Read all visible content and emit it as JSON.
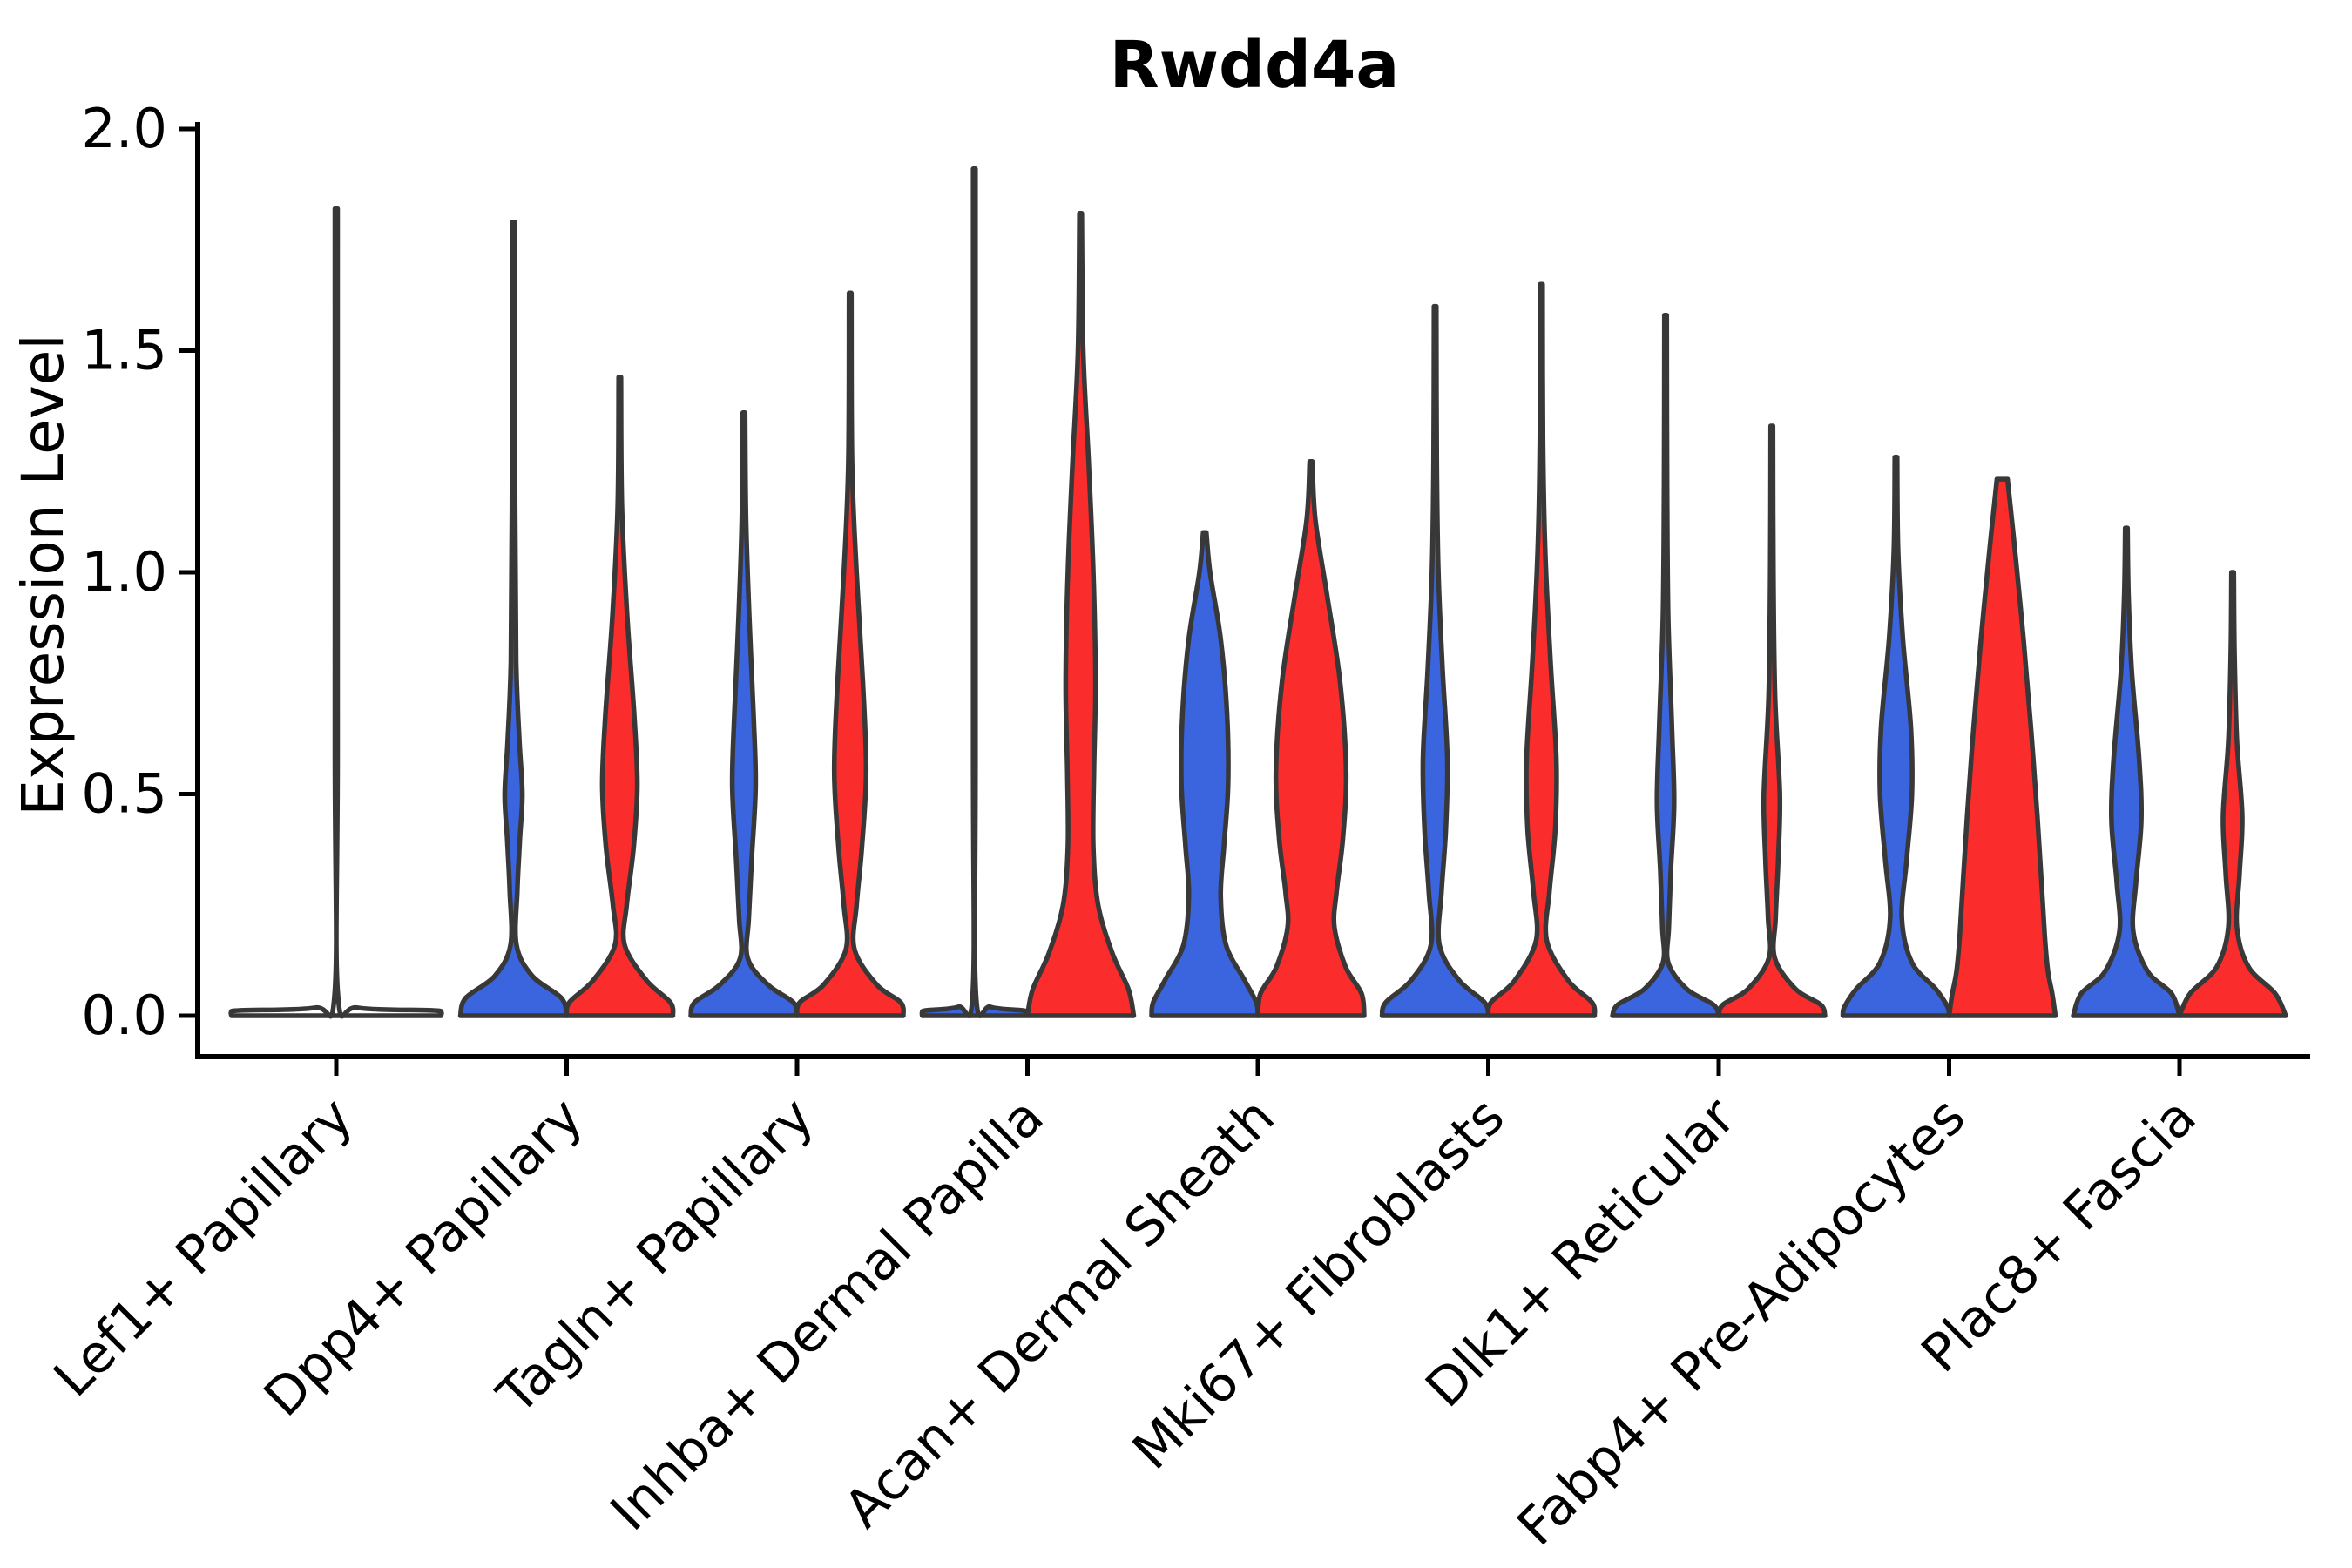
{
  "title": "Rwdd4a",
  "axes": {
    "ylabel": "Expression Level",
    "ytick_labels": [
      "0.0",
      "0.5",
      "1.0",
      "1.5",
      "2.0"
    ]
  },
  "colors": {
    "blue": "#3B64DF",
    "red": "#FB2C2C",
    "outline": "#383838",
    "axis": "#000000"
  },
  "chart_data": {
    "type": "violin",
    "title": "Rwdd4a",
    "xlabel": "",
    "ylabel": "Expression Level",
    "ylim": [
      0,
      2.0
    ],
    "yticks": [
      0,
      0.5,
      1.0,
      1.5,
      2.0
    ],
    "grid": false,
    "legend": "none",
    "categories": [
      "Lef1+ Papillary",
      "Dpp4+ Papillary",
      "Tagln+ Papillary",
      "Inhba+ Dermal Papilla",
      "Acan+ Dermal Sheath",
      "Mki67+ Fibroblasts",
      "Dlk1+ Reticular",
      "Fabp4+ Pre-Adipocytes",
      "Plac8+ Fascia"
    ],
    "series": [
      {
        "name": "group-blue",
        "color": "#3B64DF"
      },
      {
        "name": "group-red",
        "color": "#FB2C2C"
      }
    ],
    "max_expression_by_category": {
      "blue": [
        1.82,
        1.79,
        1.36,
        1.91,
        1.09,
        1.6,
        1.58,
        1.26,
        1.1
      ],
      "red": [
        null,
        1.44,
        1.63,
        1.81,
        1.25,
        1.65,
        1.33,
        1.21,
        1.0
      ]
    },
    "violins": [
      {
        "category": 0,
        "series": "single",
        "color": "none",
        "max": 1.82,
        "flattened": true,
        "profile": [
          [
            1.82,
            0.012
          ],
          [
            0.6,
            0.012
          ],
          [
            0.05,
            0.015
          ],
          [
            0.018,
            0.2
          ],
          [
            0.012,
            0.9
          ],
          [
            0.008,
            0.985
          ],
          [
            0,
            0.985
          ]
        ]
      },
      {
        "category": 1,
        "series": "blue",
        "max": 1.79,
        "profile": [
          [
            1.79,
            0.022
          ],
          [
            1.15,
            0.03
          ],
          [
            0.8,
            0.05
          ],
          [
            0.62,
            0.11
          ],
          [
            0.5,
            0.165
          ],
          [
            0.4,
            0.12
          ],
          [
            0.28,
            0.07
          ],
          [
            0.16,
            0.055
          ],
          [
            0.09,
            0.35
          ],
          [
            0.04,
            0.9
          ],
          [
            0,
            1
          ]
        ]
      },
      {
        "category": 1,
        "series": "red",
        "max": 1.44,
        "profile": [
          [
            1.44,
            0.022
          ],
          [
            1.15,
            0.04
          ],
          [
            0.9,
            0.14
          ],
          [
            0.68,
            0.27
          ],
          [
            0.52,
            0.33
          ],
          [
            0.38,
            0.26
          ],
          [
            0.25,
            0.13
          ],
          [
            0.16,
            0.09
          ],
          [
            0.08,
            0.5
          ],
          [
            0.03,
            0.95
          ],
          [
            0,
            1
          ]
        ]
      },
      {
        "category": 2,
        "series": "blue",
        "max": 1.36,
        "profile": [
          [
            1.36,
            0.022
          ],
          [
            1.12,
            0.04
          ],
          [
            0.9,
            0.1
          ],
          [
            0.68,
            0.18
          ],
          [
            0.52,
            0.22
          ],
          [
            0.36,
            0.15
          ],
          [
            0.22,
            0.09
          ],
          [
            0.13,
            0.07
          ],
          [
            0.07,
            0.45
          ],
          [
            0.03,
            0.93
          ],
          [
            0,
            1
          ]
        ]
      },
      {
        "category": 2,
        "series": "red",
        "max": 1.63,
        "profile": [
          [
            1.63,
            0.022
          ],
          [
            1.25,
            0.035
          ],
          [
            1.0,
            0.12
          ],
          [
            0.75,
            0.24
          ],
          [
            0.55,
            0.3
          ],
          [
            0.38,
            0.22
          ],
          [
            0.25,
            0.12
          ],
          [
            0.15,
            0.08
          ],
          [
            0.07,
            0.5
          ],
          [
            0.03,
            0.95
          ],
          [
            0,
            1
          ]
        ]
      },
      {
        "category": 3,
        "series": "blue",
        "max": 1.91,
        "flattened": true,
        "profile": [
          [
            1.91,
            0.022
          ],
          [
            0.6,
            0.022
          ],
          [
            0.05,
            0.03
          ],
          [
            0.02,
            0.3
          ],
          [
            0.012,
            0.9
          ],
          [
            0.008,
            0.98
          ],
          [
            0,
            0.98
          ]
        ]
      },
      {
        "category": 3,
        "series": "red",
        "max": 1.81,
        "profile": [
          [
            1.81,
            0.022
          ],
          [
            1.5,
            0.05
          ],
          [
            1.25,
            0.15
          ],
          [
            1.0,
            0.24
          ],
          [
            0.75,
            0.28
          ],
          [
            0.55,
            0.25
          ],
          [
            0.38,
            0.24
          ],
          [
            0.25,
            0.33
          ],
          [
            0.14,
            0.6
          ],
          [
            0.06,
            0.9
          ],
          [
            0,
            1
          ]
        ]
      },
      {
        "category": 4,
        "series": "blue",
        "max": 1.09,
        "profile": [
          [
            1.09,
            0.03
          ],
          [
            1.0,
            0.1
          ],
          [
            0.85,
            0.3
          ],
          [
            0.68,
            0.42
          ],
          [
            0.52,
            0.44
          ],
          [
            0.38,
            0.36
          ],
          [
            0.27,
            0.3
          ],
          [
            0.16,
            0.4
          ],
          [
            0.08,
            0.75
          ],
          [
            0.03,
            0.97
          ],
          [
            0,
            1
          ]
        ]
      },
      {
        "category": 4,
        "series": "red",
        "max": 1.25,
        "profile": [
          [
            1.25,
            0.025
          ],
          [
            1.12,
            0.08
          ],
          [
            0.95,
            0.3
          ],
          [
            0.75,
            0.55
          ],
          [
            0.55,
            0.66
          ],
          [
            0.4,
            0.6
          ],
          [
            0.28,
            0.48
          ],
          [
            0.2,
            0.44
          ],
          [
            0.11,
            0.65
          ],
          [
            0.05,
            0.95
          ],
          [
            0,
            1
          ]
        ]
      },
      {
        "category": 5,
        "series": "blue",
        "max": 1.6,
        "profile": [
          [
            1.6,
            0.022
          ],
          [
            1.25,
            0.03
          ],
          [
            1.0,
            0.06
          ],
          [
            0.78,
            0.14
          ],
          [
            0.58,
            0.23
          ],
          [
            0.42,
            0.2
          ],
          [
            0.28,
            0.12
          ],
          [
            0.16,
            0.08
          ],
          [
            0.08,
            0.45
          ],
          [
            0.03,
            0.93
          ],
          [
            0,
            1
          ]
        ]
      },
      {
        "category": 5,
        "series": "red",
        "max": 1.65,
        "profile": [
          [
            1.65,
            0.022
          ],
          [
            1.3,
            0.03
          ],
          [
            1.05,
            0.07
          ],
          [
            0.8,
            0.17
          ],
          [
            0.58,
            0.28
          ],
          [
            0.42,
            0.26
          ],
          [
            0.28,
            0.15
          ],
          [
            0.17,
            0.1
          ],
          [
            0.08,
            0.5
          ],
          [
            0.03,
            0.95
          ],
          [
            0,
            1
          ]
        ]
      },
      {
        "category": 6,
        "series": "blue",
        "max": 1.58,
        "profile": [
          [
            1.58,
            0.022
          ],
          [
            1.2,
            0.028
          ],
          [
            0.9,
            0.05
          ],
          [
            0.65,
            0.12
          ],
          [
            0.48,
            0.16
          ],
          [
            0.33,
            0.1
          ],
          [
            0.2,
            0.06
          ],
          [
            0.12,
            0.05
          ],
          [
            0.06,
            0.4
          ],
          [
            0.025,
            0.9
          ],
          [
            0,
            1
          ]
        ]
      },
      {
        "category": 6,
        "series": "red",
        "max": 1.33,
        "profile": [
          [
            1.33,
            0.022
          ],
          [
            1.0,
            0.03
          ],
          [
            0.72,
            0.06
          ],
          [
            0.5,
            0.15
          ],
          [
            0.35,
            0.12
          ],
          [
            0.22,
            0.07
          ],
          [
            0.13,
            0.055
          ],
          [
            0.06,
            0.45
          ],
          [
            0.025,
            0.92
          ],
          [
            0,
            1
          ]
        ]
      },
      {
        "category": 7,
        "series": "blue",
        "max": 1.26,
        "profile": [
          [
            1.26,
            0.022
          ],
          [
            1.05,
            0.04
          ],
          [
            0.85,
            0.13
          ],
          [
            0.65,
            0.28
          ],
          [
            0.5,
            0.3
          ],
          [
            0.35,
            0.2
          ],
          [
            0.22,
            0.11
          ],
          [
            0.12,
            0.3
          ],
          [
            0.06,
            0.75
          ],
          [
            0.02,
            0.97
          ],
          [
            0,
            1
          ]
        ]
      },
      {
        "category": 7,
        "series": "red",
        "max": 1.21,
        "flat_top": true,
        "profile": [
          [
            1.21,
            0.1
          ],
          [
            1.05,
            0.24
          ],
          [
            0.85,
            0.4
          ],
          [
            0.65,
            0.54
          ],
          [
            0.45,
            0.66
          ],
          [
            0.3,
            0.74
          ],
          [
            0.18,
            0.8
          ],
          [
            0.1,
            0.86
          ],
          [
            0.05,
            0.94
          ],
          [
            0,
            1
          ]
        ]
      },
      {
        "category": 8,
        "series": "blue",
        "max": 1.1,
        "profile": [
          [
            1.1,
            0.022
          ],
          [
            0.95,
            0.04
          ],
          [
            0.78,
            0.1
          ],
          [
            0.58,
            0.24
          ],
          [
            0.44,
            0.28
          ],
          [
            0.3,
            0.18
          ],
          [
            0.19,
            0.13
          ],
          [
            0.1,
            0.4
          ],
          [
            0.05,
            0.85
          ],
          [
            0,
            1
          ]
        ]
      },
      {
        "category": 8,
        "series": "red",
        "max": 1.0,
        "profile": [
          [
            1.0,
            0.022
          ],
          [
            0.82,
            0.035
          ],
          [
            0.62,
            0.08
          ],
          [
            0.45,
            0.18
          ],
          [
            0.32,
            0.13
          ],
          [
            0.2,
            0.08
          ],
          [
            0.11,
            0.3
          ],
          [
            0.05,
            0.8
          ],
          [
            0,
            1
          ]
        ]
      }
    ]
  }
}
